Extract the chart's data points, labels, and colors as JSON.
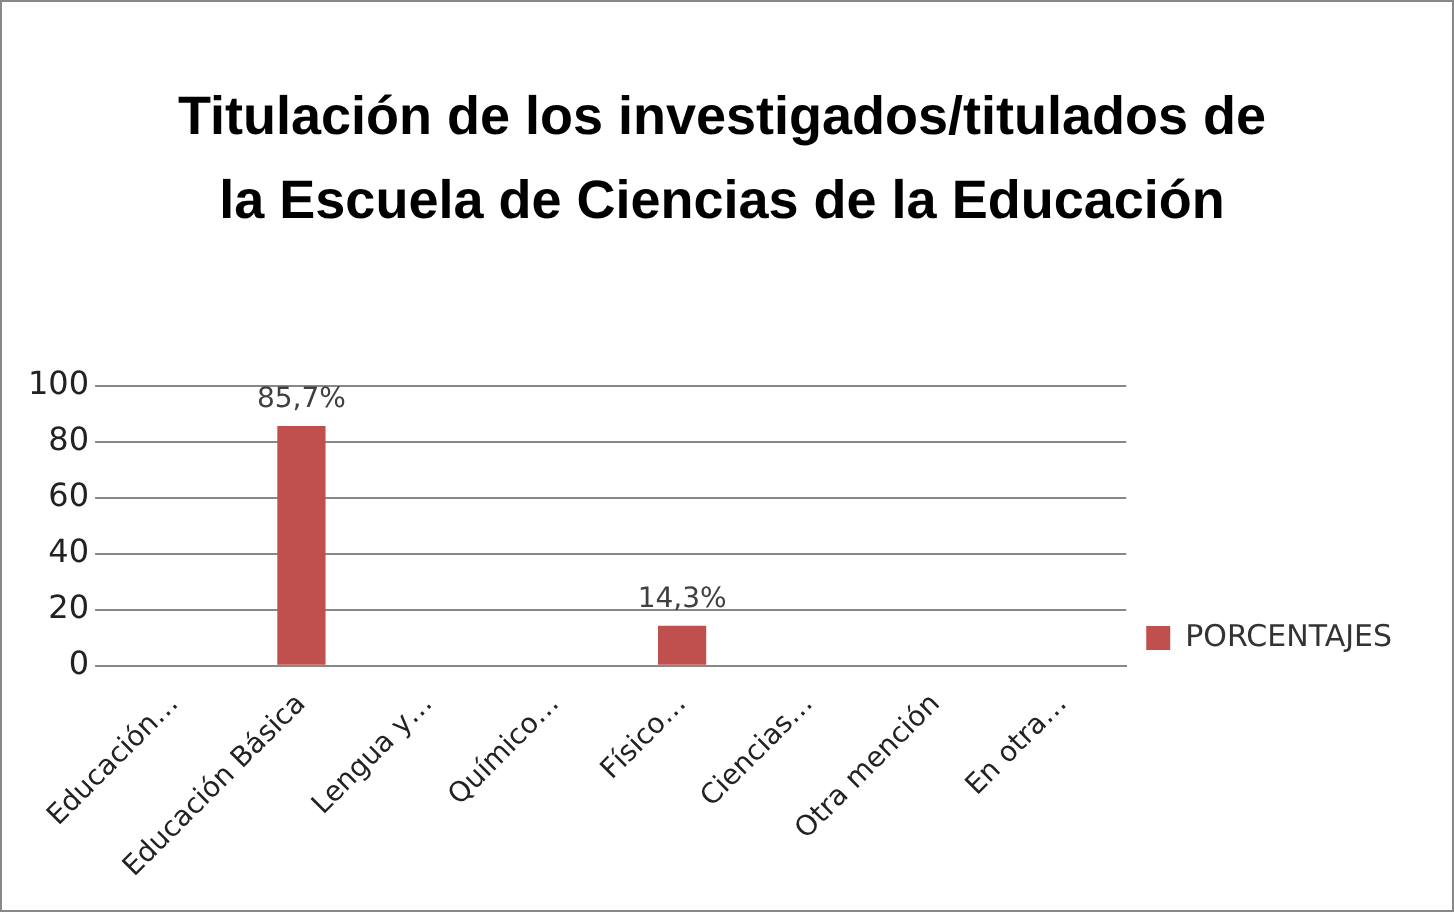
{
  "chart_data": {
    "type": "bar",
    "title": "Titulación de los investigados/titulados de la Escuela de Ciencias de la Educación",
    "categories": [
      "Educación…",
      "Educación Básica",
      "Lengua y…",
      "Químico…",
      "Físico…",
      "Ciencias…",
      "Otra mención",
      "En otra…"
    ],
    "series": [
      {
        "name": "PORCENTAJES",
        "color": "#c0504d",
        "values": [
          0,
          85.7,
          0,
          0,
          14.3,
          0,
          0,
          0
        ],
        "value_labels": [
          null,
          "85,7%",
          null,
          null,
          "14,3%",
          null,
          null,
          null
        ]
      }
    ],
    "ylim": [
      0,
      100
    ],
    "yticks": [
      0,
      20,
      40,
      60,
      80,
      100
    ],
    "grid": "y",
    "legend": "right"
  }
}
